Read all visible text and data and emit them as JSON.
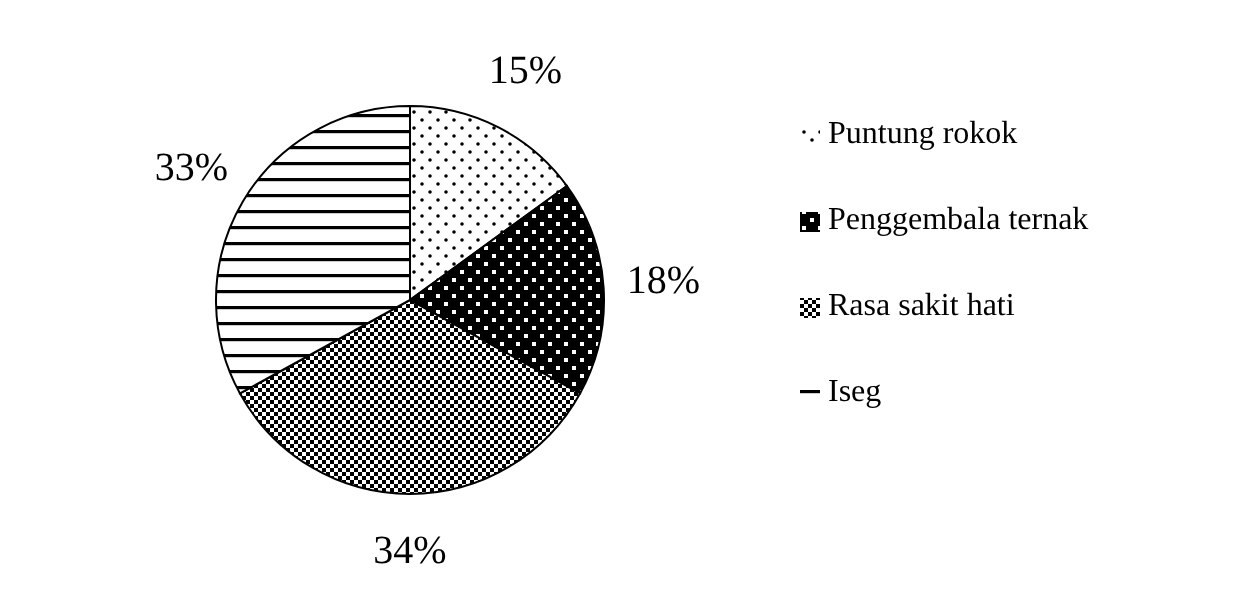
{
  "chart_data": {
    "type": "pie",
    "categories": [
      "Puntung rokok",
      "Penggembala ternak",
      "Rasa sakit hati",
      "Iseg"
    ],
    "values": [
      15,
      18,
      34,
      33
    ],
    "colors": [
      "#000000",
      "#000000",
      "#000000",
      "#000000"
    ],
    "value_labels": [
      "15%",
      "18%",
      "34%",
      "33%"
    ],
    "legend": "right"
  }
}
